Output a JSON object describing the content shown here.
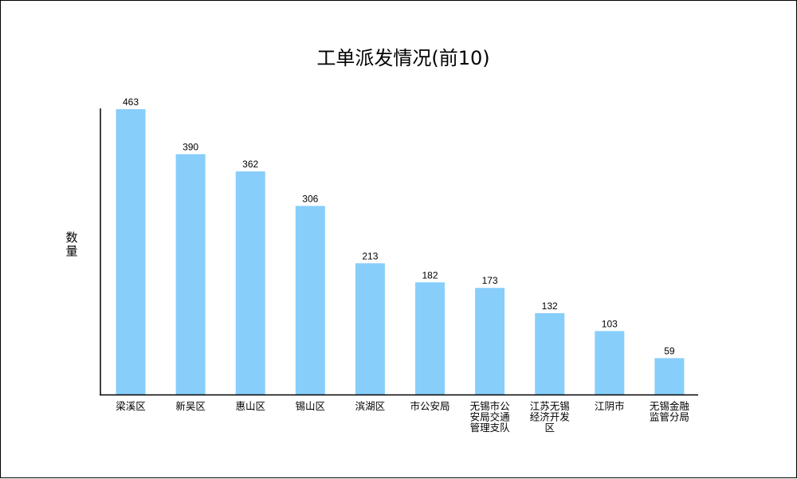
{
  "chart_data": {
    "type": "bar",
    "title": "工单派发情况(前10)",
    "ylabel": "数量",
    "xlabel": "",
    "categories": [
      [
        "梁溪区"
      ],
      [
        "新吴区"
      ],
      [
        "惠山区"
      ],
      [
        "锡山区"
      ],
      [
        "滨湖区"
      ],
      [
        "市公安局"
      ],
      [
        "无锡市公",
        "安局交通",
        "管理支队"
      ],
      [
        "江苏无锡",
        "经济开发",
        "区"
      ],
      [
        "江阴市"
      ],
      [
        "无锡金融",
        "监管分局"
      ]
    ],
    "values": [
      463,
      390,
      362,
      306,
      213,
      182,
      173,
      132,
      103,
      59
    ],
    "ylim": [
      0,
      463
    ],
    "bar_color": "#87CEFA",
    "grid": false,
    "legend": "none"
  }
}
